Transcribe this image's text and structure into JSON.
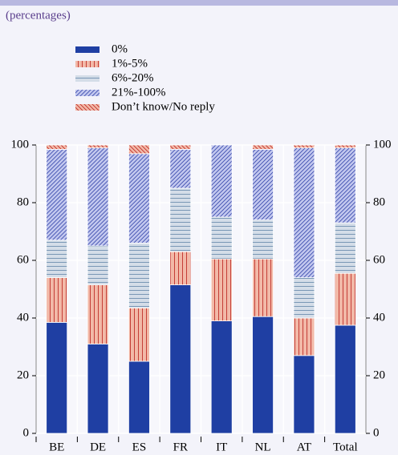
{
  "chart_data": {
    "type": "stacked_bar",
    "subtitle": "(percentages)",
    "categories": [
      "BE",
      "DE",
      "ES",
      "FR",
      "IT",
      "NL",
      "AT",
      "Total"
    ],
    "series": [
      {
        "name": "0%",
        "color": "#1f3fa3",
        "pattern": "solid",
        "values": [
          38.5,
          31,
          25,
          51.5,
          39,
          40.5,
          27,
          37.5
        ]
      },
      {
        "name": "1%-5%",
        "color": "#f2b9a8",
        "pattern": "vertical",
        "hatch_color": "#c0302a",
        "values": [
          15.5,
          20.5,
          18.5,
          11.5,
          21.5,
          20,
          13,
          18
        ]
      },
      {
        "name": "6%-20%",
        "color": "#d4dde8",
        "pattern": "horizontal",
        "hatch_color": "#6f8fb0",
        "values": [
          13,
          13.5,
          22.5,
          22,
          14.5,
          13.5,
          14,
          17.5
        ]
      },
      {
        "name": "21%-100%",
        "color": "#c3c8ef",
        "pattern": "diagonal",
        "hatch_color": "#3f4fb0",
        "values": [
          31.5,
          34,
          31,
          13.5,
          25,
          24.5,
          45,
          26
        ]
      },
      {
        "name": "Don’t know/No reply",
        "color": "#f2b9a8",
        "pattern": "diagonal-back",
        "hatch_color": "#c0302a",
        "values": [
          1.5,
          1,
          3,
          1.5,
          0,
          1.5,
          1,
          1
        ]
      }
    ],
    "ylim": [
      0,
      100
    ],
    "yticks": [
      0,
      20,
      40,
      60,
      80,
      100
    ],
    "right_axis": true,
    "grid": true
  }
}
